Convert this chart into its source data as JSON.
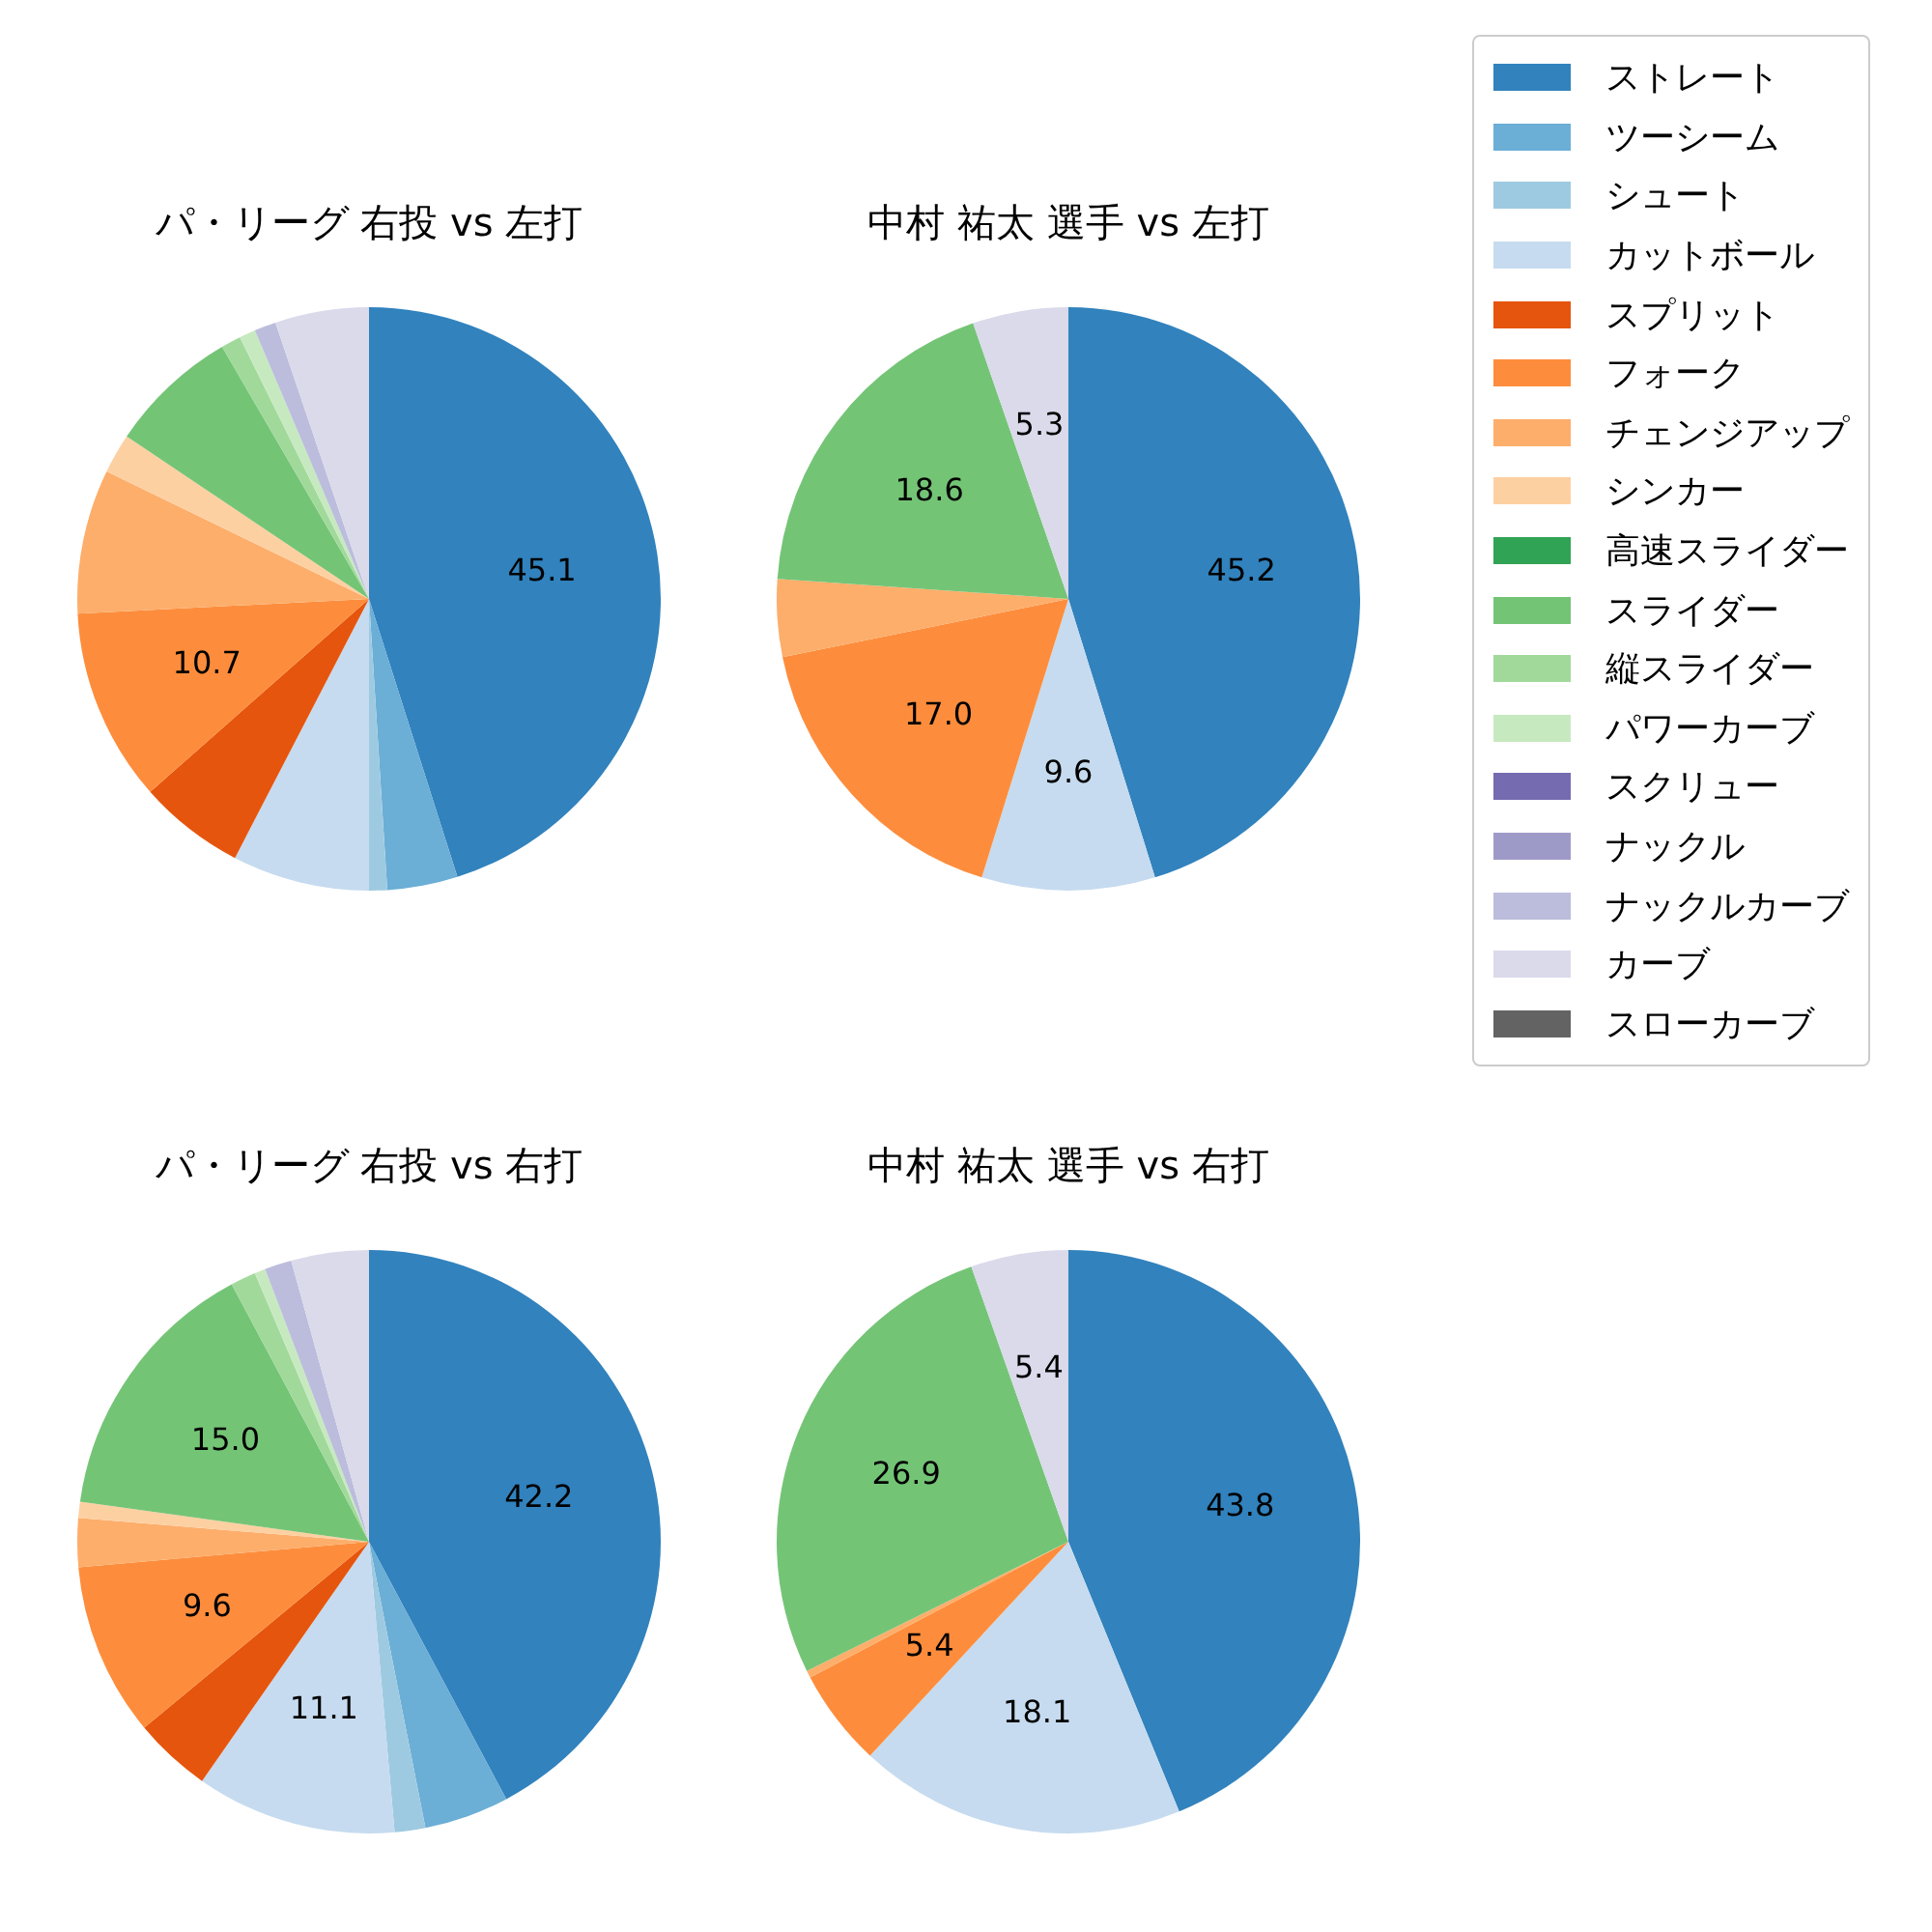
{
  "chart_data": [
    {
      "type": "pie",
      "title": "パ・リーグ 右投 vs 左打",
      "legend": "right",
      "categories": [
        "ストレート",
        "ツーシーム",
        "シュート",
        "カットボール",
        "スプリット",
        "フォーク",
        "チェンジアップ",
        "シンカー",
        "高速スライダー",
        "スライダー",
        "縦スライダー",
        "パワーカーブ",
        "スクリュー",
        "ナックル",
        "ナックルカーブ",
        "カーブ",
        "スローカーブ"
      ],
      "values": [
        45.1,
        3.9,
        1.0,
        7.6,
        5.9,
        10.7,
        8.0,
        2.2,
        0,
        7.2,
        1.1,
        0.9,
        0,
        0,
        1.2,
        5.2,
        0
      ],
      "value_labels": [
        "45.1",
        null,
        null,
        null,
        null,
        "10.7",
        null,
        null,
        null,
        null,
        null,
        null,
        null,
        null,
        null,
        null,
        null
      ],
      "colors": [
        "#3182bd",
        "#6baed6",
        "#9ecae1",
        "#c6dbef",
        "#e6550d",
        "#fd8d3c",
        "#fdae6b",
        "#fdd0a2",
        "#31a354",
        "#74c476",
        "#a1d99b",
        "#c7e9c0",
        "#756bb1",
        "#9e9ac8",
        "#bcbddc",
        "#dadaeb",
        "#636363"
      ]
    },
    {
      "type": "pie",
      "title": "中村 祐太 選手 vs 左打",
      "categories": [
        null,
        null,
        null,
        null,
        null,
        null
      ],
      "values": [
        45.2,
        9.6,
        17.0,
        4.3,
        18.6,
        5.3
      ],
      "value_labels": [
        "45.2",
        "9.6",
        "17.0",
        null,
        "18.6",
        "5.3"
      ],
      "colors": [
        "#3182bd",
        "#c6dbef",
        "#fd8d3c",
        "#fdae6b",
        "#74c476",
        "#dadaeb"
      ]
    },
    {
      "type": "pie",
      "title": "パ・リーグ 右投 vs 右打",
      "categories": [
        null,
        null,
        null,
        null,
        null,
        null,
        null,
        null,
        null,
        null,
        null,
        null,
        null
      ],
      "values": [
        42.2,
        4.7,
        1.7,
        11.1,
        4.3,
        9.6,
        2.7,
        0.9,
        15.0,
        1.4,
        0.6,
        1.5,
        4.3
      ],
      "value_labels": [
        "42.2",
        null,
        null,
        "11.1",
        null,
        "9.6",
        null,
        null,
        "15.0",
        null,
        null,
        null,
        null
      ],
      "colors": [
        "#3182bd",
        "#6baed6",
        "#9ecae1",
        "#c6dbef",
        "#e6550d",
        "#fd8d3c",
        "#fdae6b",
        "#fdd0a2",
        "#74c476",
        "#a1d99b",
        "#c7e9c0",
        "#bcbddc",
        "#dadaeb"
      ]
    },
    {
      "type": "pie",
      "title": "中村 祐太 選手 vs 右打",
      "categories": [
        null,
        null,
        null,
        null,
        null,
        null
      ],
      "values": [
        43.8,
        18.1,
        5.4,
        0.4,
        26.9,
        5.4
      ],
      "value_labels": [
        "43.8",
        "18.1",
        "5.4",
        null,
        "26.9",
        "5.4"
      ],
      "colors": [
        "#3182bd",
        "#c6dbef",
        "#fd8d3c",
        "#fdae6b",
        "#74c476",
        "#dadaeb"
      ]
    }
  ]
}
